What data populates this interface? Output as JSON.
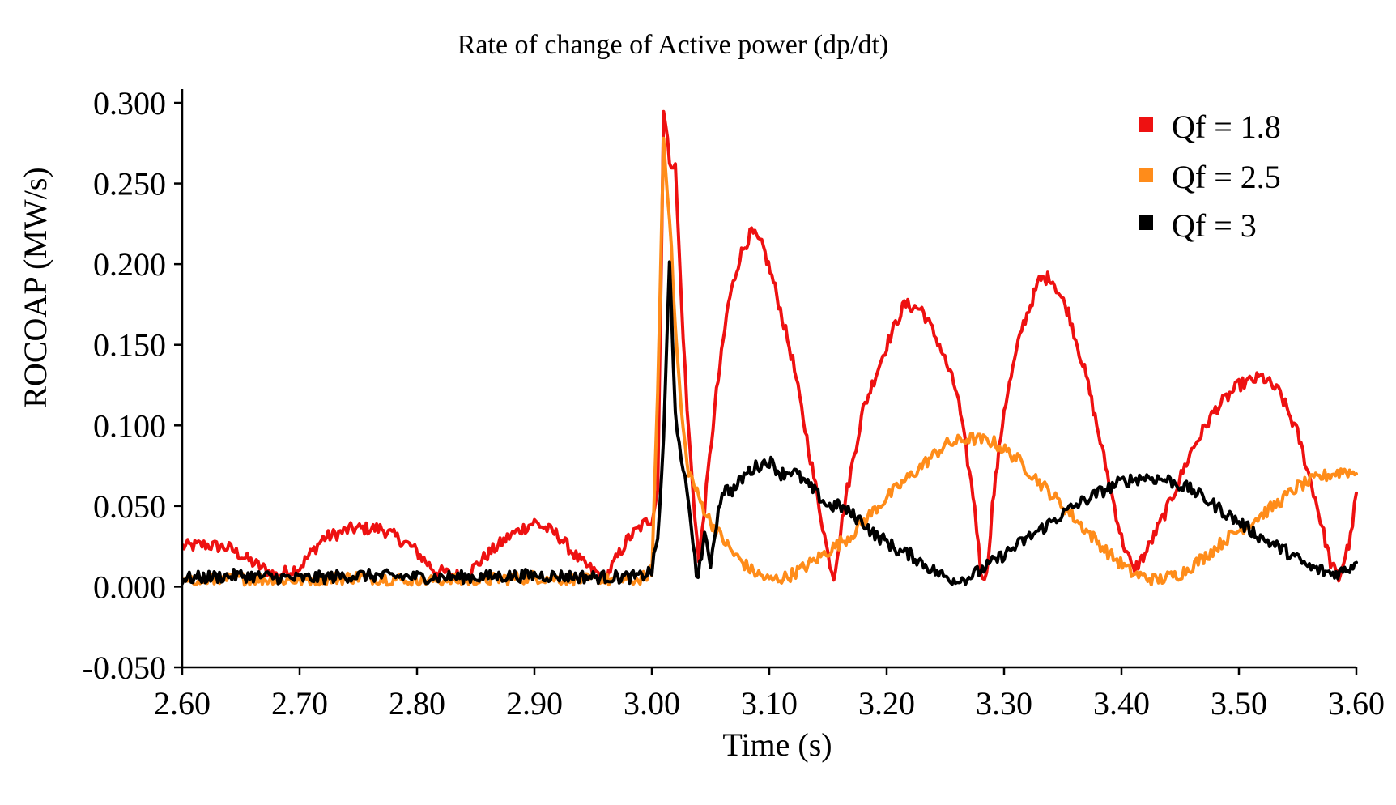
{
  "chart_data": {
    "type": "line",
    "title": "Rate of change of Active power (dp/dt)",
    "xlabel": "Time (s)",
    "ylabel": "ROCOAP (MW/s)",
    "xlim": [
      2.6,
      3.6
    ],
    "ylim": [
      -0.05,
      0.3
    ],
    "x_ticks": [
      "2.60",
      "2.70",
      "2.80",
      "2.90",
      "3.00",
      "3.10",
      "3.20",
      "3.30",
      "3.40",
      "3.50",
      "3.60"
    ],
    "y_ticks": [
      "-0.050",
      "0.000",
      "0.050",
      "0.100",
      "0.150",
      "0.200",
      "0.250",
      "0.300"
    ],
    "legend_position": "top-right",
    "grid": false,
    "series": [
      {
        "name": "Qf = 1.8",
        "color": "#ee1111",
        "points": [
          [
            2.6,
            0.025
          ],
          [
            2.62,
            0.026
          ],
          [
            2.64,
            0.024
          ],
          [
            2.66,
            0.015
          ],
          [
            2.68,
            0.007
          ],
          [
            2.7,
            0.012
          ],
          [
            2.72,
            0.03
          ],
          [
            2.745,
            0.036
          ],
          [
            2.77,
            0.036
          ],
          [
            2.795,
            0.025
          ],
          [
            2.815,
            0.01
          ],
          [
            2.84,
            0.006
          ],
          [
            2.86,
            0.02
          ],
          [
            2.88,
            0.032
          ],
          [
            2.9,
            0.04
          ],
          [
            2.92,
            0.032
          ],
          [
            2.94,
            0.015
          ],
          [
            2.96,
            0.005
          ],
          [
            2.98,
            0.03
          ],
          [
            2.995,
            0.04
          ],
          [
            3.0,
            0.042
          ],
          [
            3.005,
            0.06
          ],
          [
            3.01,
            0.296
          ],
          [
            3.015,
            0.265
          ],
          [
            3.02,
            0.26
          ],
          [
            3.025,
            0.18
          ],
          [
            3.03,
            0.11
          ],
          [
            3.035,
            0.06
          ],
          [
            3.04,
            0.015
          ],
          [
            3.045,
            0.05
          ],
          [
            3.055,
            0.12
          ],
          [
            3.065,
            0.175
          ],
          [
            3.075,
            0.205
          ],
          [
            3.085,
            0.22
          ],
          [
            3.095,
            0.21
          ],
          [
            3.105,
            0.185
          ],
          [
            3.12,
            0.14
          ],
          [
            3.135,
            0.08
          ],
          [
            3.15,
            0.02
          ],
          [
            3.155,
            0.006
          ],
          [
            3.165,
            0.055
          ],
          [
            3.18,
            0.11
          ],
          [
            3.2,
            0.15
          ],
          [
            3.215,
            0.175
          ],
          [
            3.23,
            0.172
          ],
          [
            3.245,
            0.15
          ],
          [
            3.26,
            0.12
          ],
          [
            3.275,
            0.05
          ],
          [
            3.28,
            0.01
          ],
          [
            3.285,
            0.006
          ],
          [
            3.29,
            0.05
          ],
          [
            3.3,
            0.11
          ],
          [
            3.315,
            0.16
          ],
          [
            3.33,
            0.19
          ],
          [
            3.34,
            0.192
          ],
          [
            3.355,
            0.17
          ],
          [
            3.37,
            0.13
          ],
          [
            3.385,
            0.08
          ],
          [
            3.4,
            0.03
          ],
          [
            3.41,
            0.01
          ],
          [
            3.42,
            0.02
          ],
          [
            3.44,
            0.05
          ],
          [
            3.46,
            0.085
          ],
          [
            3.48,
            0.11
          ],
          [
            3.5,
            0.125
          ],
          [
            3.52,
            0.13
          ],
          [
            3.535,
            0.12
          ],
          [
            3.55,
            0.095
          ],
          [
            3.565,
            0.055
          ],
          [
            3.578,
            0.015
          ],
          [
            3.585,
            0.005
          ],
          [
            3.595,
            0.03
          ],
          [
            3.6,
            0.058
          ]
        ]
      },
      {
        "name": "Qf = 2.5",
        "color": "#ff8c1a",
        "points": [
          [
            2.6,
            0.003
          ],
          [
            2.65,
            0.005
          ],
          [
            2.7,
            0.004
          ],
          [
            2.75,
            0.006
          ],
          [
            2.8,
            0.004
          ],
          [
            2.85,
            0.004
          ],
          [
            2.9,
            0.006
          ],
          [
            2.95,
            0.004
          ],
          [
            2.99,
            0.004
          ],
          [
            3.0,
            0.01
          ],
          [
            3.005,
            0.12
          ],
          [
            3.01,
            0.278
          ],
          [
            3.015,
            0.23
          ],
          [
            3.02,
            0.16
          ],
          [
            3.025,
            0.11
          ],
          [
            3.03,
            0.075
          ],
          [
            3.04,
            0.055
          ],
          [
            3.05,
            0.04
          ],
          [
            3.06,
            0.03
          ],
          [
            3.07,
            0.02
          ],
          [
            3.085,
            0.01
          ],
          [
            3.1,
            0.004
          ],
          [
            3.115,
            0.006
          ],
          [
            3.13,
            0.012
          ],
          [
            3.15,
            0.022
          ],
          [
            3.17,
            0.032
          ],
          [
            3.19,
            0.048
          ],
          [
            3.21,
            0.062
          ],
          [
            3.23,
            0.075
          ],
          [
            3.25,
            0.088
          ],
          [
            3.27,
            0.092
          ],
          [
            3.29,
            0.09
          ],
          [
            3.31,
            0.08
          ],
          [
            3.33,
            0.065
          ],
          [
            3.35,
            0.05
          ],
          [
            3.37,
            0.035
          ],
          [
            3.39,
            0.02
          ],
          [
            3.41,
            0.008
          ],
          [
            3.43,
            0.004
          ],
          [
            3.45,
            0.008
          ],
          [
            3.47,
            0.018
          ],
          [
            3.49,
            0.03
          ],
          [
            3.51,
            0.04
          ],
          [
            3.53,
            0.05
          ],
          [
            3.55,
            0.062
          ],
          [
            3.57,
            0.068
          ],
          [
            3.59,
            0.072
          ],
          [
            3.6,
            0.07
          ]
        ]
      },
      {
        "name": "Qf = 3",
        "color": "#000000",
        "points": [
          [
            2.6,
            0.005
          ],
          [
            2.65,
            0.007
          ],
          [
            2.7,
            0.005
          ],
          [
            2.75,
            0.007
          ],
          [
            2.8,
            0.006
          ],
          [
            2.85,
            0.006
          ],
          [
            2.9,
            0.007
          ],
          [
            2.95,
            0.006
          ],
          [
            2.99,
            0.006
          ],
          [
            3.0,
            0.01
          ],
          [
            3.005,
            0.03
          ],
          [
            3.01,
            0.09
          ],
          [
            3.015,
            0.2
          ],
          [
            3.02,
            0.11
          ],
          [
            3.025,
            0.075
          ],
          [
            3.03,
            0.06
          ],
          [
            3.035,
            0.03
          ],
          [
            3.038,
            0.004
          ],
          [
            3.045,
            0.03
          ],
          [
            3.05,
            0.015
          ],
          [
            3.055,
            0.04
          ],
          [
            3.06,
            0.06
          ],
          [
            3.07,
            0.06
          ],
          [
            3.08,
            0.07
          ],
          [
            3.09,
            0.075
          ],
          [
            3.1,
            0.078
          ],
          [
            3.11,
            0.07
          ],
          [
            3.12,
            0.072
          ],
          [
            3.13,
            0.065
          ],
          [
            3.14,
            0.058
          ],
          [
            3.15,
            0.05
          ],
          [
            3.16,
            0.05
          ],
          [
            3.17,
            0.045
          ],
          [
            3.18,
            0.04
          ],
          [
            3.19,
            0.032
          ],
          [
            3.2,
            0.028
          ],
          [
            3.21,
            0.022
          ],
          [
            3.22,
            0.02
          ],
          [
            3.23,
            0.015
          ],
          [
            3.24,
            0.01
          ],
          [
            3.25,
            0.006
          ],
          [
            3.26,
            0.004
          ],
          [
            3.27,
            0.006
          ],
          [
            3.28,
            0.01
          ],
          [
            3.29,
            0.015
          ],
          [
            3.3,
            0.02
          ],
          [
            3.32,
            0.03
          ],
          [
            3.34,
            0.04
          ],
          [
            3.36,
            0.05
          ],
          [
            3.38,
            0.058
          ],
          [
            3.4,
            0.065
          ],
          [
            3.42,
            0.068
          ],
          [
            3.44,
            0.066
          ],
          [
            3.46,
            0.06
          ],
          [
            3.48,
            0.05
          ],
          [
            3.5,
            0.04
          ],
          [
            3.52,
            0.03
          ],
          [
            3.54,
            0.022
          ],
          [
            3.56,
            0.012
          ],
          [
            3.58,
            0.008
          ],
          [
            3.59,
            0.01
          ],
          [
            3.6,
            0.015
          ]
        ]
      }
    ]
  }
}
